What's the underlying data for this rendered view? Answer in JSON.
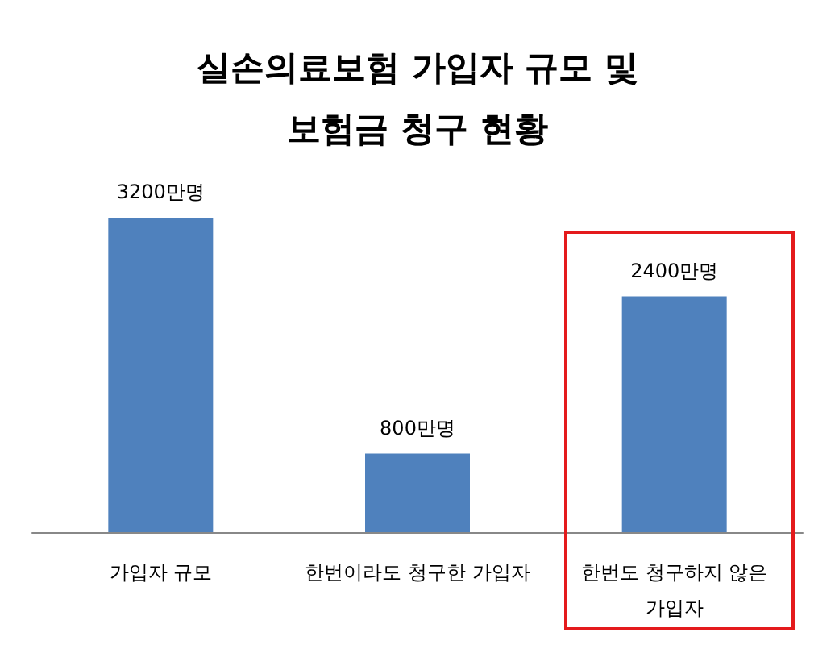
{
  "chart_data": {
    "type": "bar",
    "title": "실손의료보험 가입자 규모 및\n보험금 청구 현황",
    "categories": [
      "가입자 규모",
      "한번이라도 청구한 가입자",
      "한번도 청구하지 않은\n가입자"
    ],
    "values": [
      3200,
      800,
      2400
    ],
    "value_labels": [
      "3200만명",
      "800만명",
      "2400만명"
    ],
    "color": "#4f81bd"
  }
}
